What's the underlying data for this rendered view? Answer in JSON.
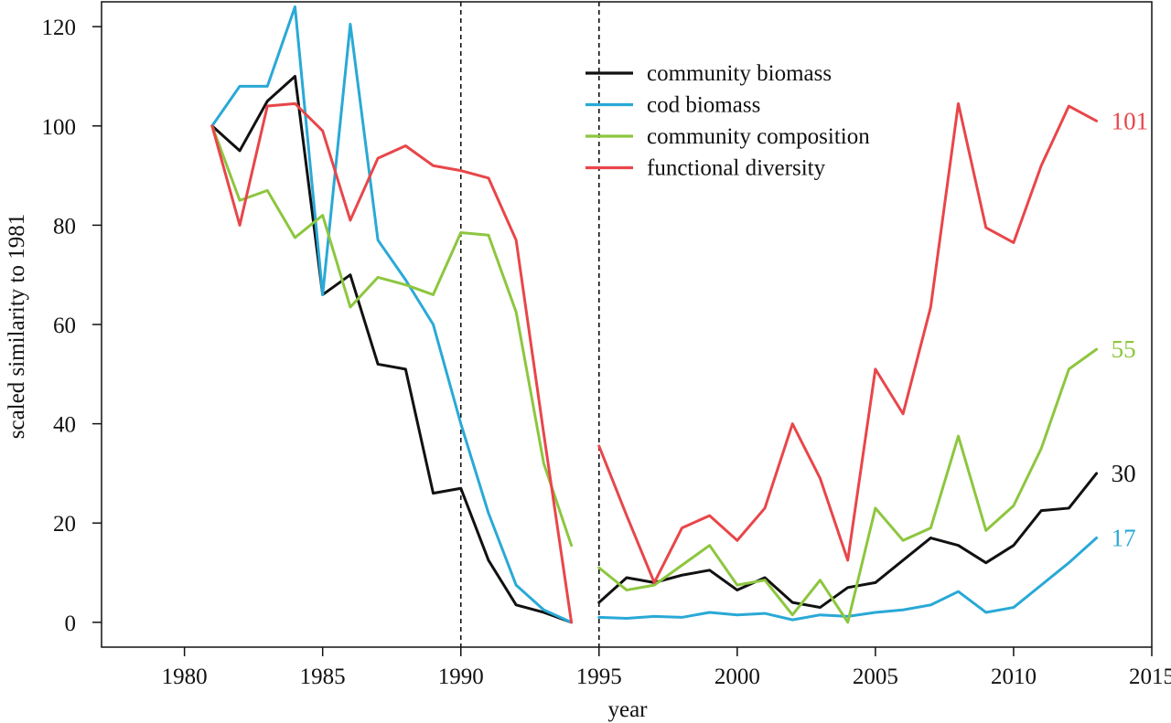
{
  "chart_data": {
    "type": "line",
    "title": "",
    "xlabel": "year",
    "ylabel": "scaled similarity to 1981",
    "xlim": [
      1977,
      2015
    ],
    "ylim": [
      -5,
      125
    ],
    "xticks": [
      1980,
      1985,
      1990,
      1995,
      2000,
      2005,
      2010,
      2015
    ],
    "yticks": [
      0,
      20,
      40,
      60,
      80,
      100,
      120
    ],
    "reference_lines_x": [
      1990,
      1995
    ],
    "grid": false,
    "legend_position": "top-center",
    "series": [
      {
        "name": "community biomass",
        "color": "#111111",
        "end_label": "30",
        "segments": [
          [
            [
              1981,
              100
            ],
            [
              1982,
              95
            ],
            [
              1983,
              105
            ],
            [
              1984,
              110
            ],
            [
              1985,
              66
            ],
            [
              1986,
              70
            ],
            [
              1987,
              52
            ],
            [
              1988,
              51
            ],
            [
              1989,
              26
            ],
            [
              1990,
              27
            ],
            [
              1991,
              12.5
            ],
            [
              1992,
              3.5
            ],
            [
              1993,
              2
            ],
            [
              1994,
              0
            ]
          ],
          [
            [
              1995,
              4
            ],
            [
              1996,
              9
            ],
            [
              1997,
              8
            ],
            [
              1998,
              9.5
            ],
            [
              1999,
              10.5
            ],
            [
              2000,
              6.5
            ],
            [
              2001,
              9
            ],
            [
              2002,
              4
            ],
            [
              2003,
              3
            ],
            [
              2004,
              7
            ],
            [
              2005,
              8
            ],
            [
              2006,
              12.5
            ],
            [
              2007,
              17
            ],
            [
              2008,
              15.5
            ],
            [
              2009,
              12
            ],
            [
              2010,
              15.5
            ],
            [
              2011,
              22.5
            ],
            [
              2012,
              23
            ],
            [
              2013,
              30
            ]
          ]
        ]
      },
      {
        "name": "cod biomass",
        "color": "#29a9d6",
        "end_label": "17",
        "segments": [
          [
            [
              1981,
              100
            ],
            [
              1982,
              108
            ],
            [
              1983,
              108
            ],
            [
              1984,
              124
            ],
            [
              1985,
              66
            ],
            [
              1986,
              120.5
            ],
            [
              1987,
              77
            ],
            [
              1988,
              69
            ],
            [
              1989,
              60
            ],
            [
              1990,
              40
            ],
            [
              1991,
              22
            ],
            [
              1992,
              7.5
            ],
            [
              1993,
              2.5
            ],
            [
              1994,
              0
            ]
          ],
          [
            [
              1995,
              1
            ],
            [
              1996,
              0.8
            ],
            [
              1997,
              1.2
            ],
            [
              1998,
              1
            ],
            [
              1999,
              2
            ],
            [
              2000,
              1.5
            ],
            [
              2001,
              1.8
            ],
            [
              2002,
              0.5
            ],
            [
              2003,
              1.5
            ],
            [
              2004,
              1.2
            ],
            [
              2005,
              2
            ],
            [
              2006,
              2.5
            ],
            [
              2007,
              3.5
            ],
            [
              2008,
              6.2
            ],
            [
              2009,
              2
            ],
            [
              2010,
              3
            ],
            [
              2011,
              7.5
            ],
            [
              2012,
              12
            ],
            [
              2013,
              17
            ]
          ]
        ]
      },
      {
        "name": "community composition",
        "color": "#8dc63f",
        "end_label": "55",
        "segments": [
          [
            [
              1981,
              100
            ],
            [
              1982,
              85
            ],
            [
              1983,
              87
            ],
            [
              1984,
              77.5
            ],
            [
              1985,
              82
            ],
            [
              1986,
              63.5
            ],
            [
              1987,
              69.5
            ],
            [
              1988,
              68
            ],
            [
              1989,
              66
            ],
            [
              1990,
              78.5
            ],
            [
              1991,
              78
            ],
            [
              1992,
              62.5
            ],
            [
              1993,
              32
            ],
            [
              1994,
              15.5
            ]
          ],
          [
            [
              1995,
              11
            ],
            [
              1996,
              6.5
            ],
            [
              1997,
              7.5
            ],
            [
              1998,
              11.5
            ],
            [
              1999,
              15.5
            ],
            [
              2000,
              7.5
            ],
            [
              2001,
              8.5
            ],
            [
              2002,
              1.5
            ],
            [
              2003,
              8.5
            ],
            [
              2004,
              0
            ],
            [
              2005,
              23
            ],
            [
              2006,
              16.5
            ],
            [
              2007,
              19
            ],
            [
              2008,
              37.5
            ],
            [
              2009,
              18.5
            ],
            [
              2010,
              23.5
            ],
            [
              2011,
              35
            ],
            [
              2012,
              51
            ],
            [
              2013,
              55
            ]
          ]
        ]
      },
      {
        "name": "functional diversity",
        "color": "#e8464a",
        "end_label": "101",
        "segments": [
          [
            [
              1981,
              100
            ],
            [
              1982,
              80
            ],
            [
              1983,
              104
            ],
            [
              1984,
              104.5
            ],
            [
              1985,
              99
            ],
            [
              1986,
              81
            ],
            [
              1987,
              93.5
            ],
            [
              1988,
              96
            ],
            [
              1989,
              92
            ],
            [
              1990,
              91
            ],
            [
              1991,
              89.5
            ],
            [
              1992,
              77
            ],
            [
              1993,
              38
            ],
            [
              1994,
              0
            ]
          ],
          [
            [
              1995,
              35.5
            ],
            [
              1996,
              21.5
            ],
            [
              1997,
              8
            ],
            [
              1998,
              19
            ],
            [
              1999,
              21.5
            ],
            [
              2000,
              16.5
            ],
            [
              2001,
              23
            ],
            [
              2002,
              40
            ],
            [
              2003,
              29
            ],
            [
              2004,
              12.5
            ],
            [
              2005,
              51
            ],
            [
              2006,
              42
            ],
            [
              2007,
              63.5
            ],
            [
              2008,
              104.5
            ],
            [
              2009,
              79.5
            ],
            [
              2010,
              76.5
            ],
            [
              2011,
              92
            ],
            [
              2012,
              104
            ],
            [
              2013,
              101
            ]
          ]
        ]
      }
    ]
  }
}
